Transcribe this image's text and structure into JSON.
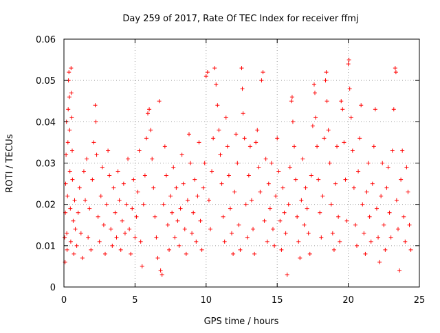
{
  "chart_data": {
    "type": "scatter",
    "title": "Day 259 of 2017, Rate Of TEC Index for receiver ffmj",
    "xlabel": "GPS time / hours",
    "ylabel": "ROTI / TECUs",
    "xlim": [
      0,
      25
    ],
    "ylim": [
      0,
      0.06
    ],
    "xticks": [
      0,
      5,
      10,
      15,
      20,
      25
    ],
    "yticks": [
      0,
      0.01,
      0.02,
      0.03,
      0.04,
      0.05,
      0.06
    ],
    "xtick_labels": [
      "0",
      "5",
      "10",
      "15",
      "20",
      "25"
    ],
    "ytick_labels": [
      "0",
      "0.01",
      "0.02",
      "0.03",
      "0.04",
      "0.05",
      "0.06"
    ],
    "grid": true,
    "marker": "plus",
    "color": "#ff0000",
    "series": [
      {
        "name": "ROTI",
        "points": [
          [
            0.05,
            0.012
          ],
          [
            0.08,
            0.006
          ],
          [
            0.1,
            0.018
          ],
          [
            0.12,
            0.025
          ],
          [
            0.15,
            0.032
          ],
          [
            0.18,
            0.04
          ],
          [
            0.2,
            0.013
          ],
          [
            0.22,
            0.009
          ],
          [
            0.25,
            0.022
          ],
          [
            0.28,
            0.035
          ],
          [
            0.3,
            0.043
          ],
          [
            0.32,
            0.05
          ],
          [
            0.35,
            0.052
          ],
          [
            0.38,
            0.046
          ],
          [
            0.4,
            0.038
          ],
          [
            0.42,
            0.028
          ],
          [
            0.45,
            0.019
          ],
          [
            0.48,
            0.011
          ],
          [
            0.5,
            0.053
          ],
          [
            0.52,
            0.047
          ],
          [
            0.55,
            0.041
          ],
          [
            0.58,
            0.033
          ],
          [
            0.6,
            0.026
          ],
          [
            0.65,
            0.016
          ],
          [
            0.7,
            0.008
          ],
          [
            0.75,
            0.021
          ],
          [
            0.8,
            0.014
          ],
          [
            0.9,
            0.01
          ],
          [
            1.0,
            0.018
          ],
          [
            1.1,
            0.024
          ],
          [
            1.2,
            0.013
          ],
          [
            1.3,
            0.007
          ],
          [
            1.4,
            0.028
          ],
          [
            1.5,
            0.021
          ],
          [
            1.6,
            0.031
          ],
          [
            1.7,
            0.012
          ],
          [
            1.8,
            0.019
          ],
          [
            1.9,
            0.009
          ],
          [
            2.0,
            0.026
          ],
          [
            2.1,
            0.035
          ],
          [
            2.2,
            0.044
          ],
          [
            2.25,
            0.04
          ],
          [
            2.3,
            0.032
          ],
          [
            2.4,
            0.017
          ],
          [
            2.5,
            0.011
          ],
          [
            2.6,
            0.022
          ],
          [
            2.7,
            0.029
          ],
          [
            2.8,
            0.015
          ],
          [
            2.9,
            0.008
          ],
          [
            3.0,
            0.02
          ],
          [
            3.1,
            0.033
          ],
          [
            3.2,
            0.027
          ],
          [
            3.3,
            0.014
          ],
          [
            3.4,
            0.01
          ],
          [
            3.5,
            0.024
          ],
          [
            3.6,
            0.018
          ],
          [
            3.7,
            0.012
          ],
          [
            3.8,
            0.028
          ],
          [
            3.9,
            0.021
          ],
          [
            4.0,
            0.009
          ],
          [
            4.1,
            0.016
          ],
          [
            4.2,
            0.025
          ],
          [
            4.3,
            0.013
          ],
          [
            4.4,
            0.02
          ],
          [
            4.5,
            0.031
          ],
          [
            4.6,
            0.014
          ],
          [
            4.7,
            0.008
          ],
          [
            4.8,
            0.019
          ],
          [
            4.9,
            0.026
          ],
          [
            5.0,
            0.012
          ],
          [
            5.1,
            0.017
          ],
          [
            5.2,
            0.023
          ],
          [
            5.3,
            0.033
          ],
          [
            5.4,
            0.011
          ],
          [
            5.5,
            0.005
          ],
          [
            5.6,
            0.02
          ],
          [
            5.7,
            0.027
          ],
          [
            5.8,
            0.036
          ],
          [
            5.9,
            0.042
          ],
          [
            6.0,
            0.043
          ],
          [
            6.1,
            0.038
          ],
          [
            6.2,
            0.031
          ],
          [
            6.3,
            0.024
          ],
          [
            6.4,
            0.017
          ],
          [
            6.5,
            0.012
          ],
          [
            6.6,
            0.007
          ],
          [
            6.7,
            0.045
          ],
          [
            6.8,
            0.004
          ],
          [
            6.9,
            0.003
          ],
          [
            7.0,
            0.02
          ],
          [
            7.1,
            0.034
          ],
          [
            7.2,
            0.027
          ],
          [
            7.3,
            0.015
          ],
          [
            7.4,
            0.009
          ],
          [
            7.5,
            0.022
          ],
          [
            7.6,
            0.018
          ],
          [
            7.7,
            0.029
          ],
          [
            7.8,
            0.012
          ],
          [
            7.9,
            0.024
          ],
          [
            8.0,
            0.016
          ],
          [
            8.1,
            0.01
          ],
          [
            8.2,
            0.019
          ],
          [
            8.3,
            0.032
          ],
          [
            8.4,
            0.025
          ],
          [
            8.5,
            0.014
          ],
          [
            8.6,
            0.008
          ],
          [
            8.7,
            0.021
          ],
          [
            8.8,
            0.037
          ],
          [
            8.9,
            0.03
          ],
          [
            9.0,
            0.013
          ],
          [
            9.1,
            0.018
          ],
          [
            9.2,
            0.026
          ],
          [
            9.3,
            0.011
          ],
          [
            9.4,
            0.022
          ],
          [
            9.5,
            0.035
          ],
          [
            9.6,
            0.016
          ],
          [
            9.7,
            0.009
          ],
          [
            9.8,
            0.024
          ],
          [
            9.9,
            0.03
          ],
          [
            10.0,
            0.051
          ],
          [
            10.1,
            0.052
          ],
          [
            10.2,
            0.021
          ],
          [
            10.3,
            0.014
          ],
          [
            10.4,
            0.028
          ],
          [
            10.5,
            0.036
          ],
          [
            10.6,
            0.053
          ],
          [
            10.7,
            0.049
          ],
          [
            10.8,
            0.044
          ],
          [
            10.9,
            0.038
          ],
          [
            11.0,
            0.032
          ],
          [
            11.1,
            0.025
          ],
          [
            11.2,
            0.017
          ],
          [
            11.3,
            0.011
          ],
          [
            11.4,
            0.041
          ],
          [
            11.5,
            0.034
          ],
          [
            11.6,
            0.027
          ],
          [
            11.7,
            0.019
          ],
          [
            11.8,
            0.013
          ],
          [
            11.9,
            0.008
          ],
          [
            12.0,
            0.023
          ],
          [
            12.1,
            0.037
          ],
          [
            12.2,
            0.03
          ],
          [
            12.3,
            0.015
          ],
          [
            12.4,
            0.009
          ],
          [
            12.5,
            0.053
          ],
          [
            12.55,
            0.048
          ],
          [
            12.6,
            0.042
          ],
          [
            12.7,
            0.036
          ],
          [
            12.8,
            0.02
          ],
          [
            12.9,
            0.012
          ],
          [
            13.0,
            0.027
          ],
          [
            13.1,
            0.034
          ],
          [
            13.2,
            0.021
          ],
          [
            13.3,
            0.014
          ],
          [
            13.4,
            0.008
          ],
          [
            13.5,
            0.035
          ],
          [
            13.6,
            0.038
          ],
          [
            13.7,
            0.029
          ],
          [
            13.8,
            0.023
          ],
          [
            13.9,
            0.05
          ],
          [
            14.0,
            0.052
          ],
          [
            14.1,
            0.016
          ],
          [
            14.2,
            0.031
          ],
          [
            14.3,
            0.011
          ],
          [
            14.4,
            0.025
          ],
          [
            14.5,
            0.019
          ],
          [
            14.6,
            0.03
          ],
          [
            14.7,
            0.014
          ],
          [
            14.8,
            0.01
          ],
          [
            14.9,
            0.022
          ],
          [
            15.0,
            0.036
          ],
          [
            15.1,
            0.028
          ],
          [
            15.2,
            0.016
          ],
          [
            15.3,
            0.009
          ],
          [
            15.4,
            0.024
          ],
          [
            15.5,
            0.018
          ],
          [
            15.6,
            0.013
          ],
          [
            15.7,
            0.003
          ],
          [
            15.8,
            0.02
          ],
          [
            15.9,
            0.029
          ],
          [
            16.0,
            0.045
          ],
          [
            16.05,
            0.046
          ],
          [
            16.1,
            0.04
          ],
          [
            16.2,
            0.034
          ],
          [
            16.3,
            0.026
          ],
          [
            16.4,
            0.017
          ],
          [
            16.5,
            0.011
          ],
          [
            16.6,
            0.007
          ],
          [
            16.7,
            0.021
          ],
          [
            16.8,
            0.031
          ],
          [
            16.9,
            0.015
          ],
          [
            17.0,
            0.024
          ],
          [
            17.1,
            0.019
          ],
          [
            17.2,
            0.013
          ],
          [
            17.3,
            0.008
          ],
          [
            17.4,
            0.027
          ],
          [
            17.5,
            0.039
          ],
          [
            17.6,
            0.049
          ],
          [
            17.65,
            0.047
          ],
          [
            17.7,
            0.041
          ],
          [
            17.8,
            0.034
          ],
          [
            17.9,
            0.026
          ],
          [
            18.0,
            0.018
          ],
          [
            18.1,
            0.012
          ],
          [
            18.2,
            0.022
          ],
          [
            18.3,
            0.036
          ],
          [
            18.4,
            0.05
          ],
          [
            18.45,
            0.052
          ],
          [
            18.5,
            0.045
          ],
          [
            18.6,
            0.038
          ],
          [
            18.7,
            0.03
          ],
          [
            18.8,
            0.02
          ],
          [
            18.9,
            0.013
          ],
          [
            19.0,
            0.009
          ],
          [
            19.1,
            0.025
          ],
          [
            19.2,
            0.034
          ],
          [
            19.3,
            0.017
          ],
          [
            19.4,
            0.011
          ],
          [
            19.5,
            0.045
          ],
          [
            19.6,
            0.043
          ],
          [
            19.7,
            0.035
          ],
          [
            19.8,
            0.026
          ],
          [
            19.9,
            0.016
          ],
          [
            20.0,
            0.054
          ],
          [
            20.05,
            0.055
          ],
          [
            20.1,
            0.048
          ],
          [
            20.2,
            0.041
          ],
          [
            20.3,
            0.033
          ],
          [
            20.4,
            0.024
          ],
          [
            20.5,
            0.015
          ],
          [
            20.6,
            0.01
          ],
          [
            20.7,
            0.028
          ],
          [
            20.8,
            0.036
          ],
          [
            20.9,
            0.044
          ],
          [
            21.0,
            0.02
          ],
          [
            21.1,
            0.013
          ],
          [
            21.2,
            0.008
          ],
          [
            21.3,
            0.023
          ],
          [
            21.4,
            0.03
          ],
          [
            21.5,
            0.017
          ],
          [
            21.6,
            0.011
          ],
          [
            21.7,
            0.025
          ],
          [
            21.8,
            0.034
          ],
          [
            21.9,
            0.043
          ],
          [
            22.0,
            0.019
          ],
          [
            22.1,
            0.012
          ],
          [
            22.2,
            0.006
          ],
          [
            22.3,
            0.022
          ],
          [
            22.4,
            0.03
          ],
          [
            22.5,
            0.015
          ],
          [
            22.6,
            0.009
          ],
          [
            22.7,
            0.024
          ],
          [
            22.8,
            0.029
          ],
          [
            22.9,
            0.018
          ],
          [
            23.0,
            0.012
          ],
          [
            23.1,
            0.033
          ],
          [
            23.2,
            0.043
          ],
          [
            23.3,
            0.053
          ],
          [
            23.35,
            0.052
          ],
          [
            23.4,
            0.021
          ],
          [
            23.5,
            0.014
          ],
          [
            23.6,
            0.004
          ],
          [
            23.7,
            0.026
          ],
          [
            23.8,
            0.033
          ],
          [
            23.9,
            0.017
          ],
          [
            24.0,
            0.011
          ],
          [
            24.1,
            0.029
          ],
          [
            24.2,
            0.023
          ],
          [
            24.3,
            0.015
          ],
          [
            24.4,
            0.009
          ]
        ]
      }
    ]
  }
}
